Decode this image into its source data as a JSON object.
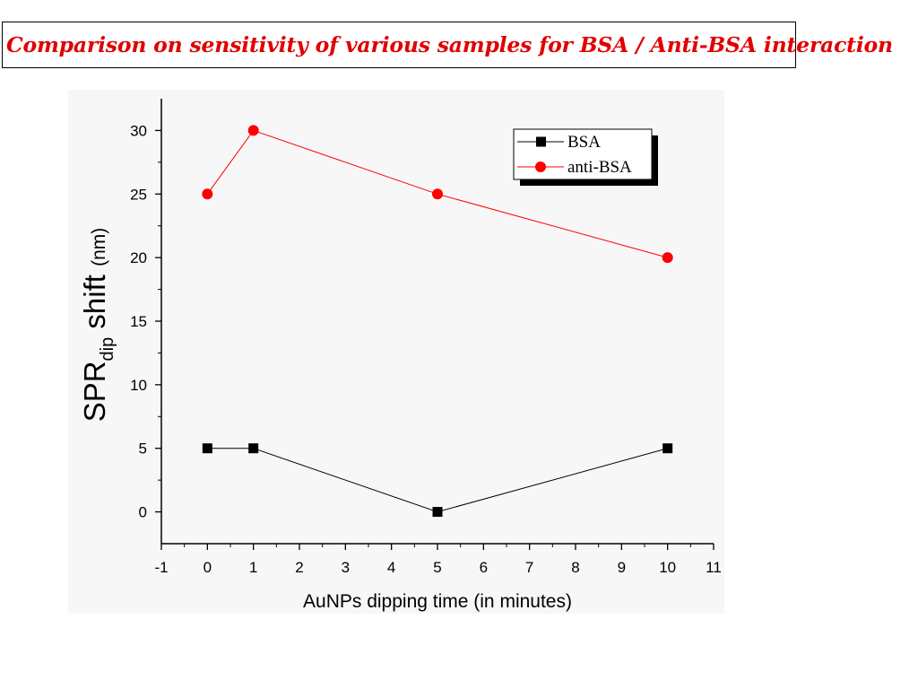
{
  "slide": {
    "title": "Comparison on sensitivity of various samples for BSA / Anti-BSA interaction"
  },
  "colors": {
    "title": "#e00000",
    "bsa": "#000000",
    "anti_bsa": "#ff0000",
    "axis": "#000000"
  },
  "chart_data": {
    "type": "line",
    "xlabel": "AuNPs dipping time (in minutes)",
    "ylabel_main": "SPR",
    "ylabel_sub": "dip",
    "ylabel_rest": " shift ",
    "ylabel_unit": "(nm)",
    "xlim": [
      -1,
      11
    ],
    "ylim": [
      -2.5,
      32.5
    ],
    "xticks": [
      -1,
      0,
      1,
      2,
      3,
      4,
      5,
      6,
      7,
      8,
      9,
      10,
      11
    ],
    "yticks": [
      0,
      5,
      10,
      15,
      20,
      25,
      30
    ],
    "x": [
      0,
      1,
      5,
      10
    ],
    "series": [
      {
        "name": "BSA",
        "marker": "square",
        "values": [
          5,
          5,
          0,
          5
        ]
      },
      {
        "name": "anti-BSA",
        "marker": "circle",
        "values": [
          25,
          30,
          25,
          20
        ]
      }
    ],
    "legend_position": "top-right",
    "grid": false
  }
}
